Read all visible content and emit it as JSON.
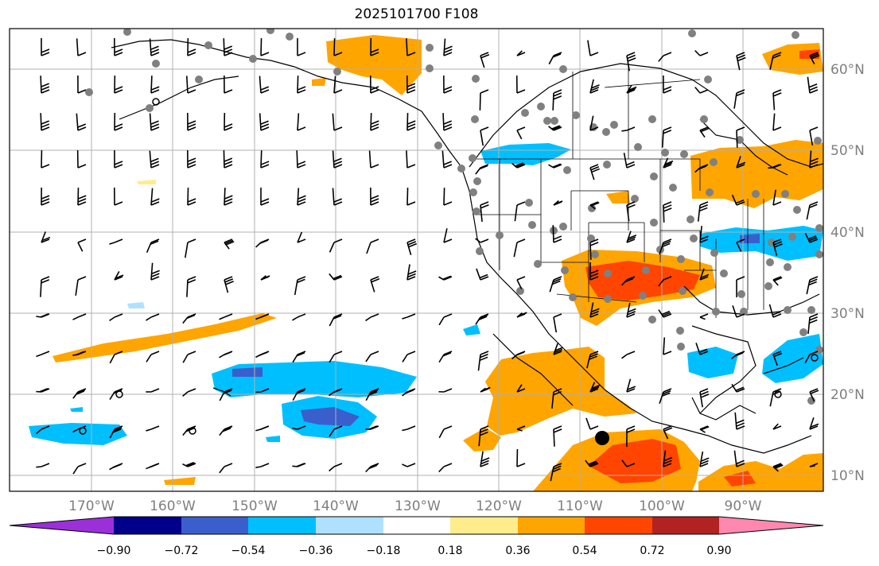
{
  "title": "2025101700 F108",
  "lon_ticks": [
    "170°W",
    "160°W",
    "150°W",
    "140°W",
    "130°W",
    "120°W",
    "110°W",
    "100°W",
    "90°W"
  ],
  "lat_ticks": [
    "60°N",
    "50°N",
    "40°N",
    "30°N",
    "20°N",
    "10°N"
  ],
  "colorbar": {
    "labels": [
      "−0.90",
      "−0.72",
      "−0.54",
      "−0.36",
      "−0.18",
      "0.18",
      "0.36",
      "0.54",
      "0.72",
      "0.90"
    ],
    "colors": [
      "#9b30d9",
      "#00008b",
      "#3a5fcd",
      "#00bfff",
      "#b0e0ff",
      "#ffffff",
      "#ffec8b",
      "#ffa500",
      "#ff4500",
      "#b22222",
      "#ff88b0"
    ]
  },
  "fill_colors": {
    "orange": "#ffa500",
    "red_orange": "#ff4500",
    "light_blue": "#b0e0ff",
    "sky_blue": "#00bfff",
    "royal_blue": "#3a5fcd",
    "yellow": "#ffec8b"
  }
}
